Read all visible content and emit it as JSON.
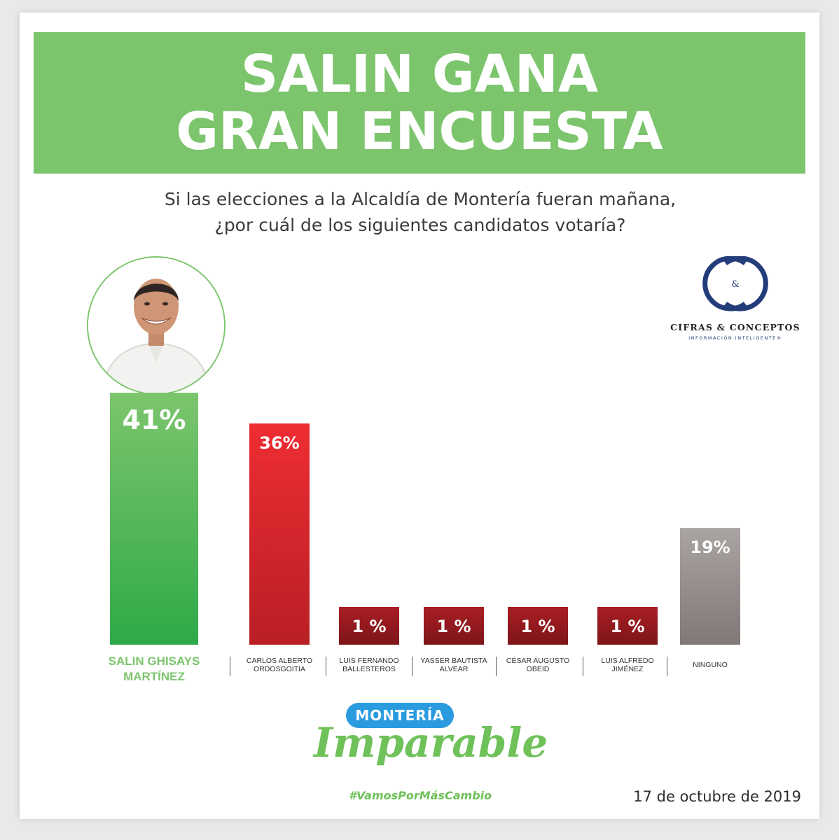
{
  "banner": {
    "line1": "SALIN GANA",
    "line2": "GRAN ENCUESTA"
  },
  "question": {
    "line1": "Si las elecciones a la Alcaldía de Montería fueran mañana,",
    "line2": "¿por cuál de los siguientes candidatos votaría?"
  },
  "pollster": {
    "monogram": "C&C",
    "name": "CIFRAS & CONCEPTOS",
    "tagline": "INFORMACIÓN INTELIGENTE®"
  },
  "colors": {
    "banner_green": "#7cc56d",
    "leader_green_top": "#5dbb50",
    "leader_green_bottom": "#2faa48",
    "red_top": "#ee2d33",
    "red_bottom": "#b81f25",
    "dark_red_top": "#a81e24",
    "dark_red_bottom": "#7d1519",
    "gray_top": "#aaa4a2",
    "gray_bottom": "#7f7876",
    "pill_blue": "#2b9be0",
    "pollster_navy": "#233d7a"
  },
  "chart_data": {
    "type": "bar",
    "categories": [
      "SALIN GHISAYS\nMARTÍNEZ",
      "CARLOS ALBERTO\nORDOSGOITIA",
      "LUIS FERNANDO\nBALLESTEROS",
      "YASSER BAUTISTA\nALVEAR",
      "CÉSAR AUGUSTO\nOBEID",
      "LUIS ALFREDO\nJIMÉNEZ",
      "NINGUNO"
    ],
    "values": [
      41,
      36,
      1,
      1,
      1,
      1,
      19
    ],
    "value_labels": [
      "41%",
      "36%",
      "1 %",
      "1 %",
      "1 %",
      "1 %",
      "19%"
    ],
    "units": "%",
    "ylim": [
      0,
      41
    ],
    "bar_colors": [
      "green",
      "red",
      "dark-red",
      "dark-red",
      "dark-red",
      "dark-red",
      "gray"
    ],
    "title": "",
    "xlabel": "",
    "ylabel": ""
  },
  "footer": {
    "brand_top": "MONTERÍA",
    "brand_script": "Imparable",
    "hashtag": "#VamosPorMásCambio",
    "date": "17 de octubre de 2019"
  }
}
